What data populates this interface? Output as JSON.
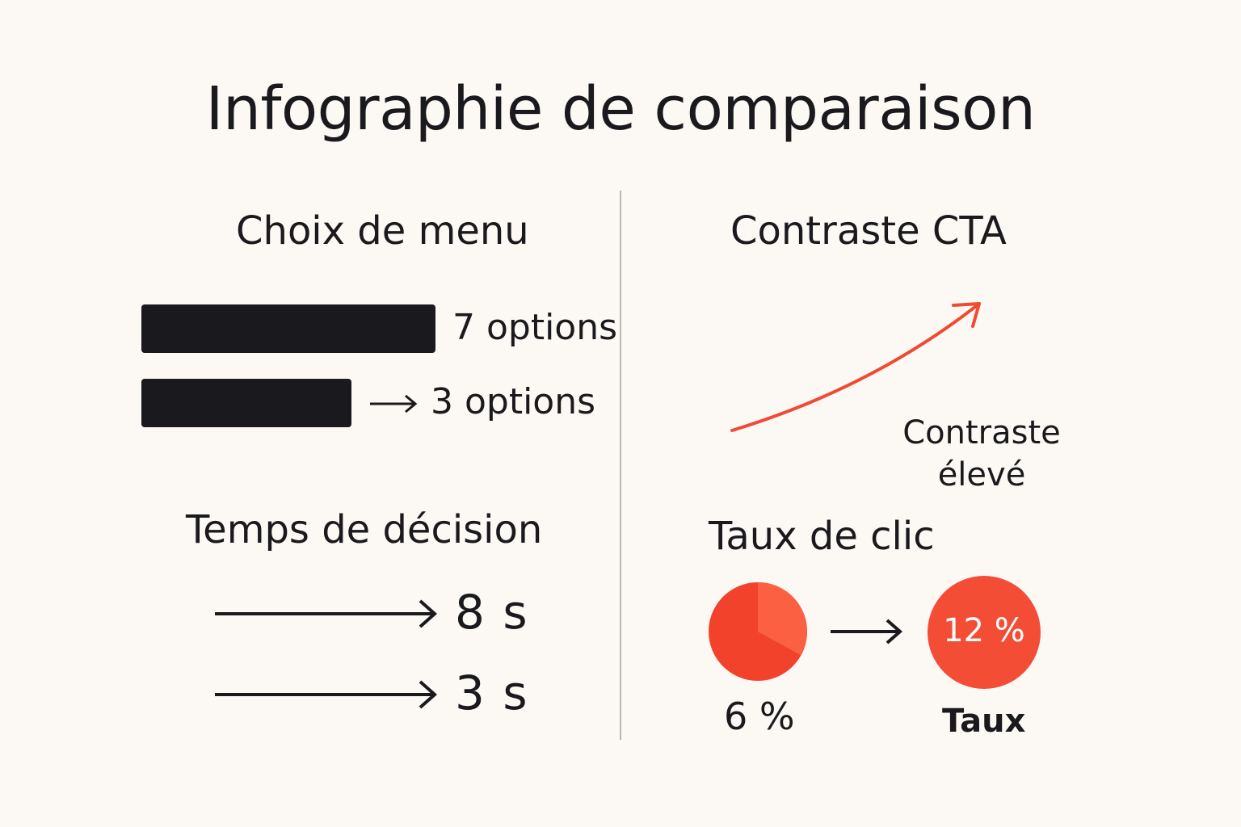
{
  "title": "Infographie de comparaison",
  "left": {
    "menu": {
      "heading": "Choix de menu",
      "rows": [
        {
          "label": "7 options",
          "value": 7
        },
        {
          "label": "3 options",
          "value": 3
        }
      ]
    },
    "decision": {
      "heading": "Temps de décision",
      "rows": [
        {
          "label": "8 s"
        },
        {
          "label": "3 s"
        }
      ]
    }
  },
  "right": {
    "cta": {
      "heading": "Contraste CTA",
      "label_line1": "Contraste",
      "label_line2": "élevé"
    },
    "ctr": {
      "heading": "Taux de clic",
      "before_label": "6 %",
      "before_value": 6,
      "after_value_text": "12 %",
      "after_label": "Taux"
    }
  },
  "colors": {
    "background": "#fcf8f4",
    "ink": "#1a1a1e",
    "accent": "#f04a32",
    "accent_light": "#fb6043",
    "accent_dark": "#f2422c"
  }
}
